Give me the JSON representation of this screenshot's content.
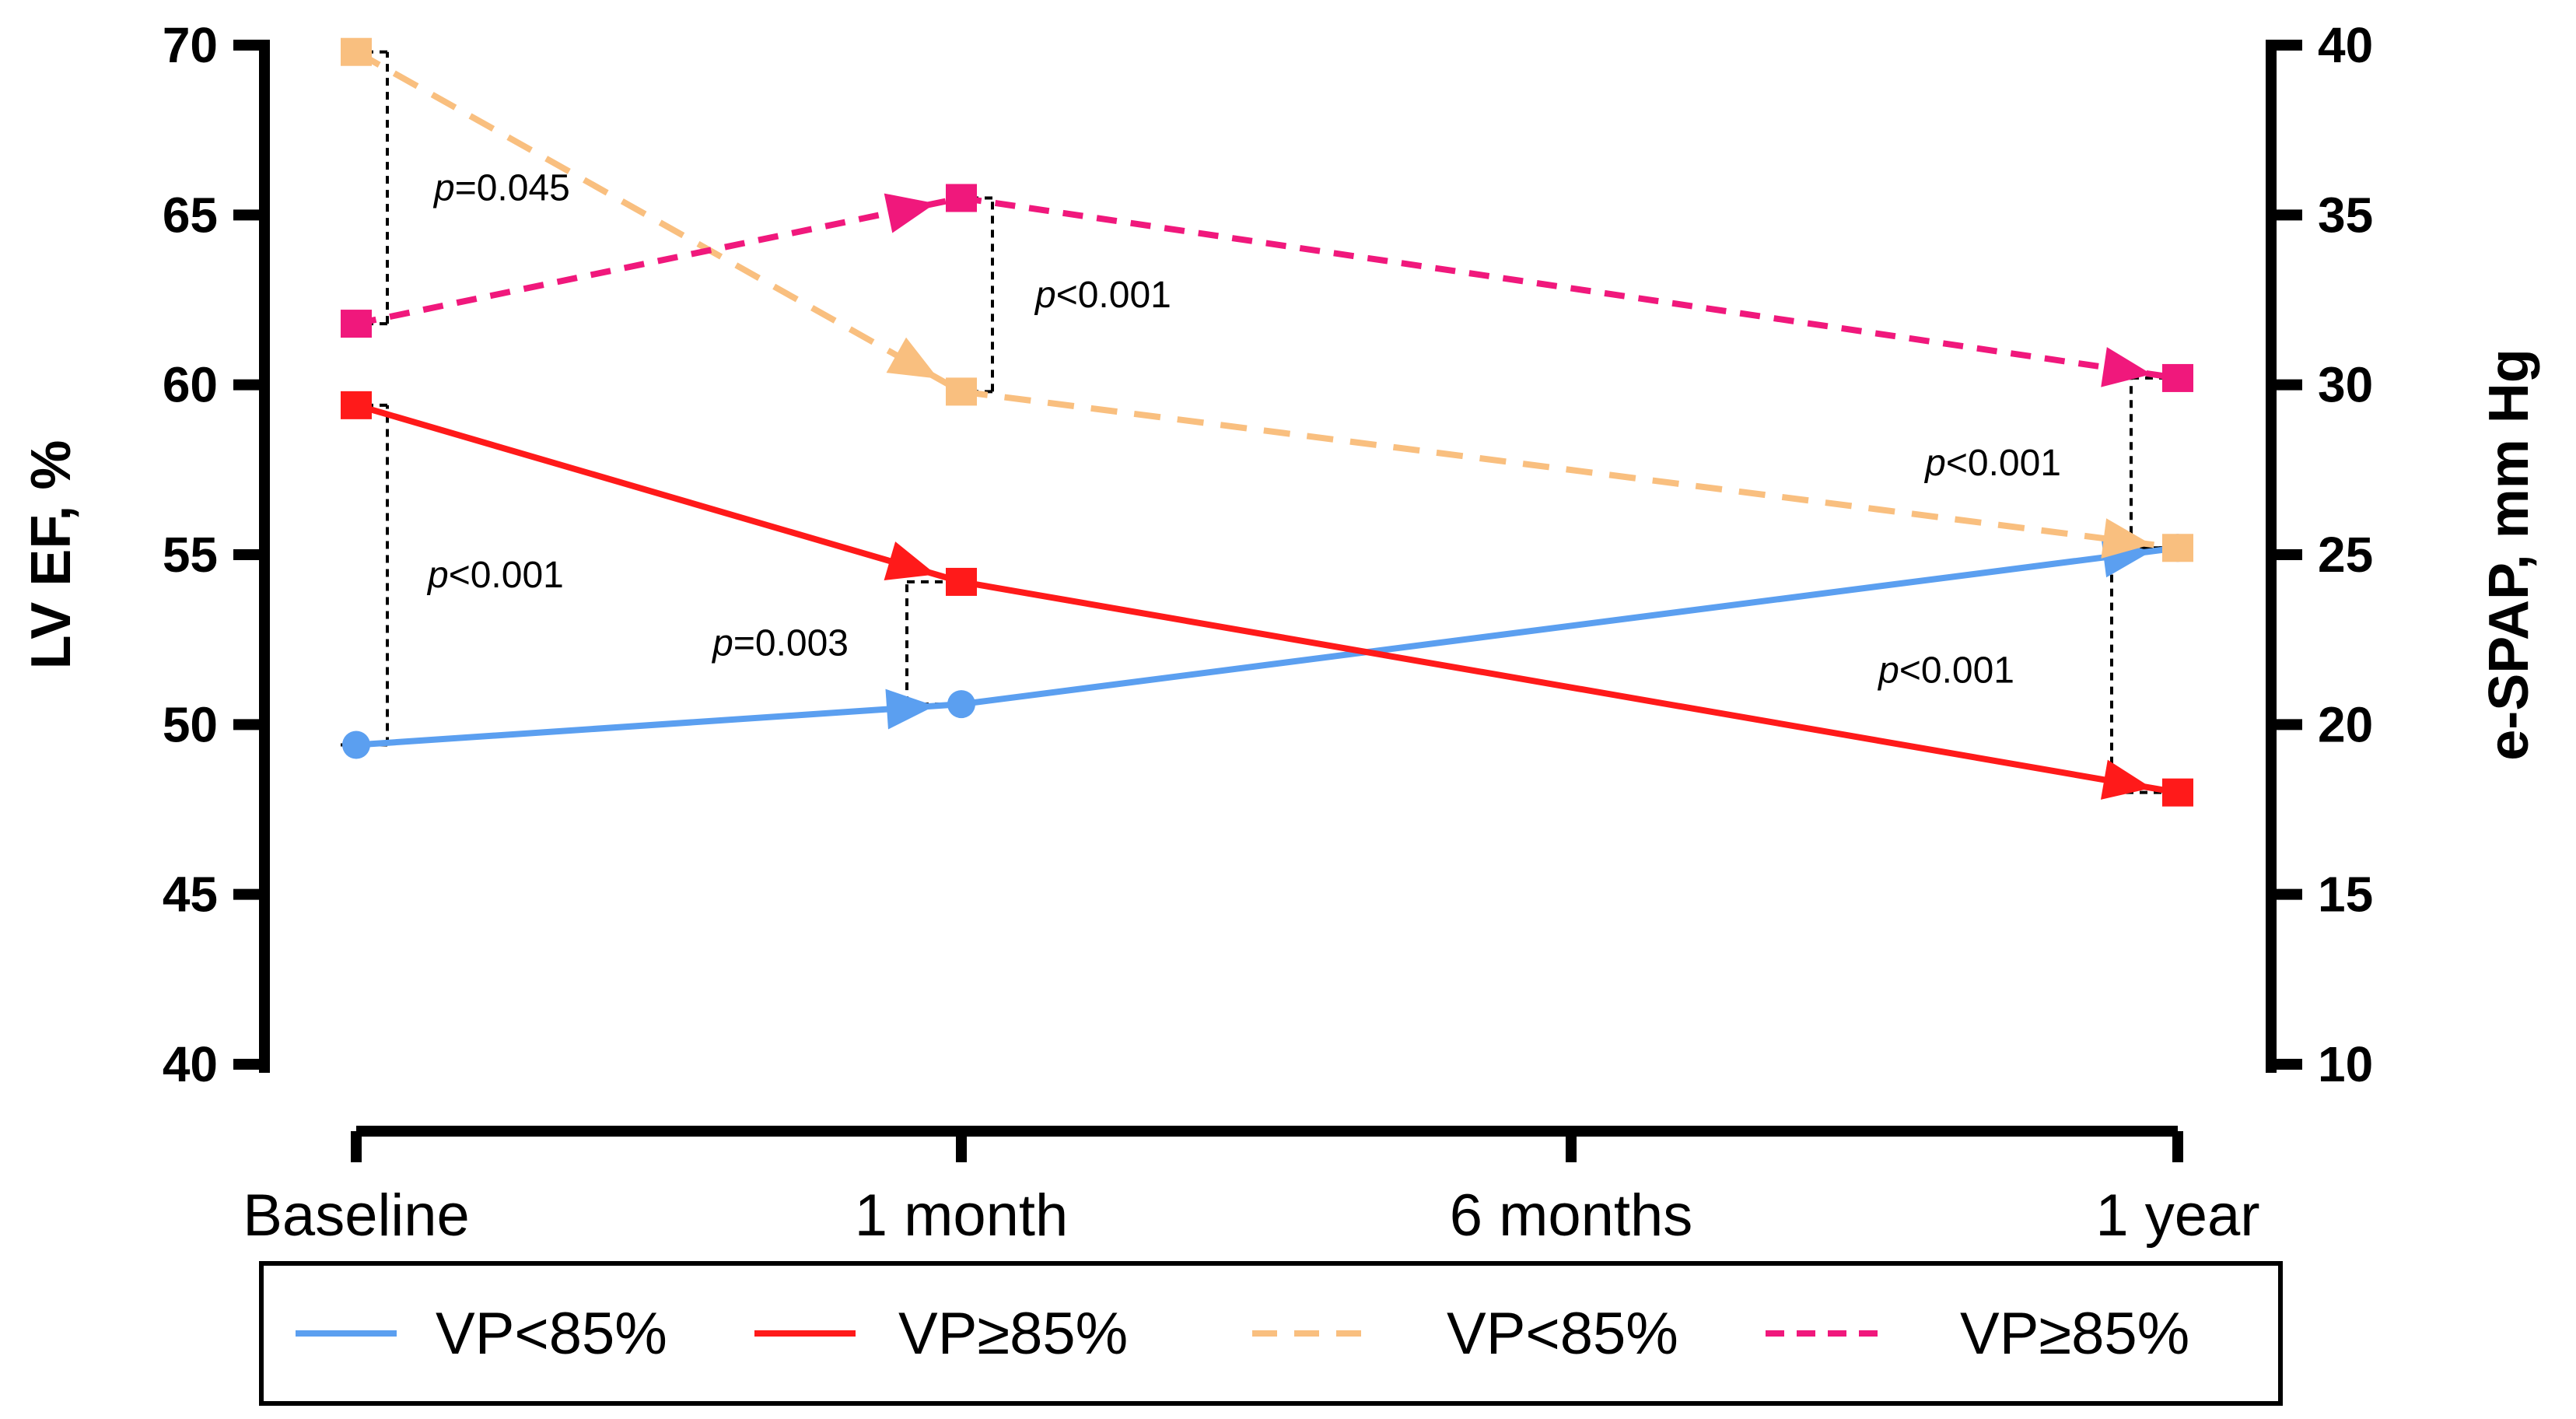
{
  "chart_data": {
    "type": "line",
    "categories": [
      "Baseline",
      "1 month",
      "6 months",
      "1 year"
    ],
    "left_axis": {
      "label": "LV EF, %",
      "ylim": [
        40,
        70
      ],
      "ticks": [
        40,
        45,
        50,
        55,
        60,
        65,
        70
      ]
    },
    "right_axis": {
      "label": "e-SPAP, mm Hg",
      "ylim": [
        10,
        40
      ],
      "ticks": [
        10,
        15,
        20,
        25,
        30,
        35,
        40
      ]
    },
    "series": [
      {
        "name": "VP<85%",
        "axis": "left",
        "color": "#5b9ff0",
        "dash": "solid",
        "marker": "circle",
        "x": [
          "Baseline",
          "1 month",
          "1 year"
        ],
        "values": [
          49.4,
          50.6,
          55.2
        ]
      },
      {
        "name": "VP≥85%",
        "axis": "left",
        "color": "#ff1a1a",
        "dash": "solid",
        "marker": "square",
        "x": [
          "Baseline",
          "1 month",
          "1 year"
        ],
        "values": [
          59.4,
          54.2,
          48.0
        ]
      },
      {
        "name": "VP<85%",
        "axis": "right",
        "color": "#f9bf7f",
        "dash": "dashed",
        "marker": "square",
        "x": [
          "Baseline",
          "1 month",
          "1 year"
        ],
        "values": [
          39.8,
          29.8,
          25.2
        ]
      },
      {
        "name": "VP≥85%",
        "axis": "right",
        "color": "#f0187c",
        "dash": "dashed",
        "marker": "square",
        "x": [
          "Baseline",
          "1 month",
          "1 year"
        ],
        "values": [
          31.8,
          35.5,
          30.2
        ]
      }
    ],
    "annotations": [
      {
        "x": "Baseline",
        "axis": "right",
        "from": 31.8,
        "to": 39.8,
        "text": "p=0.045"
      },
      {
        "x": "Baseline",
        "axis": "left",
        "from": 49.4,
        "to": 59.4,
        "text": "p<0.001"
      },
      {
        "x": "1 month",
        "axis": "right",
        "from": 29.8,
        "to": 35.5,
        "text": "p<0.001"
      },
      {
        "x": "1 month",
        "axis": "left",
        "from": 50.6,
        "to": 54.2,
        "text": "p=0.003"
      },
      {
        "x": "1 year",
        "axis": "right",
        "from": 25.2,
        "to": 30.2,
        "text": "p<0.001"
      },
      {
        "x": "1 year",
        "axis": "left",
        "from": 48.0,
        "to": 55.2,
        "text": "p<0.001"
      }
    ],
    "legend": {
      "position": "bottom",
      "entries": [
        "VP<85%",
        "VP≥85%",
        "VP<85%",
        "VP≥85%"
      ]
    },
    "grid": false
  }
}
